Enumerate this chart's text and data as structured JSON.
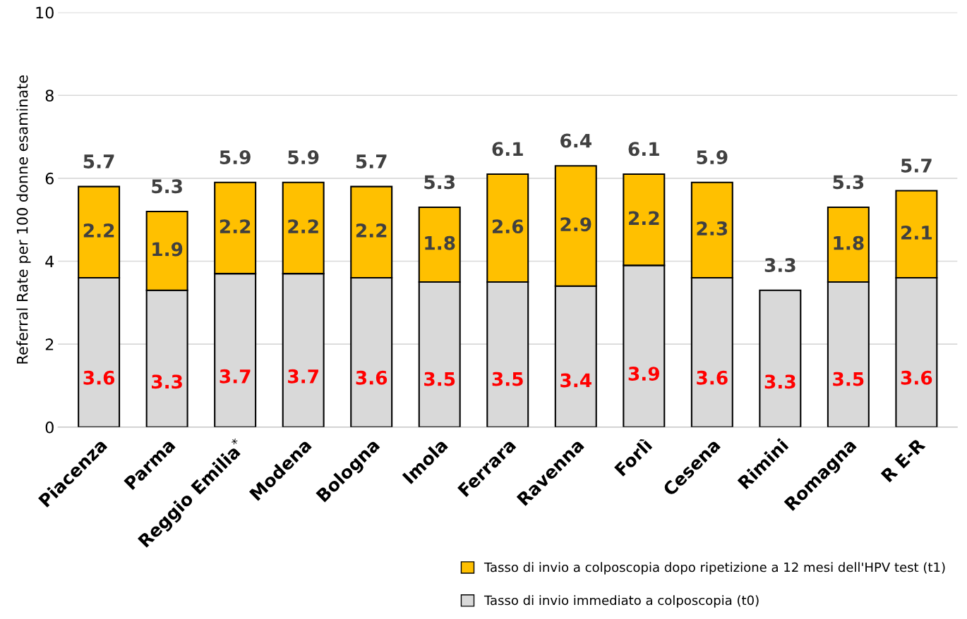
{
  "chart_data": {
    "type": "bar",
    "stacked": true,
    "ylabel": "Referral Rate per 100 donne esaminate",
    "categories": [
      "Piacenza",
      "Parma",
      "Reggio Emilia$^{*}$",
      "Modena",
      "Bologna",
      "Imola",
      "Ferrara",
      "Ravenna",
      "Forlì",
      "Cesena",
      "Rimini",
      "Romagna",
      "R E-R"
    ],
    "series": [
      {
        "name": "Tasso di invio immediato a colposcopia (t0)",
        "color": "#d9d9d9",
        "values": [
          3.6,
          3.3,
          3.7,
          3.7,
          3.6,
          3.5,
          3.5,
          3.4,
          3.9,
          3.6,
          3.3,
          3.5,
          3.6
        ]
      },
      {
        "name": "Tasso di invio a colposcopia dopo ripetizione a 12 mesi dell'HPV test (t1)",
        "color": "#ffc000",
        "values": [
          2.2,
          1.9,
          2.2,
          2.2,
          2.2,
          1.8,
          2.6,
          2.9,
          2.2,
          2.3,
          null,
          1.8,
          2.1
        ]
      }
    ],
    "data_labels": true,
    "totals": [
      "5.7",
      "5.3",
      "5.9",
      "5.9",
      "5.7",
      "5.3",
      "6.1",
      "6.4",
      "6.1",
      "5.9",
      "3.3",
      "5.3",
      "5.7"
    ],
    "ylim": [
      0,
      10
    ],
    "yticks": [
      0,
      2,
      4,
      6,
      8,
      10
    ],
    "grid": "y",
    "legend": "bottom right"
  }
}
